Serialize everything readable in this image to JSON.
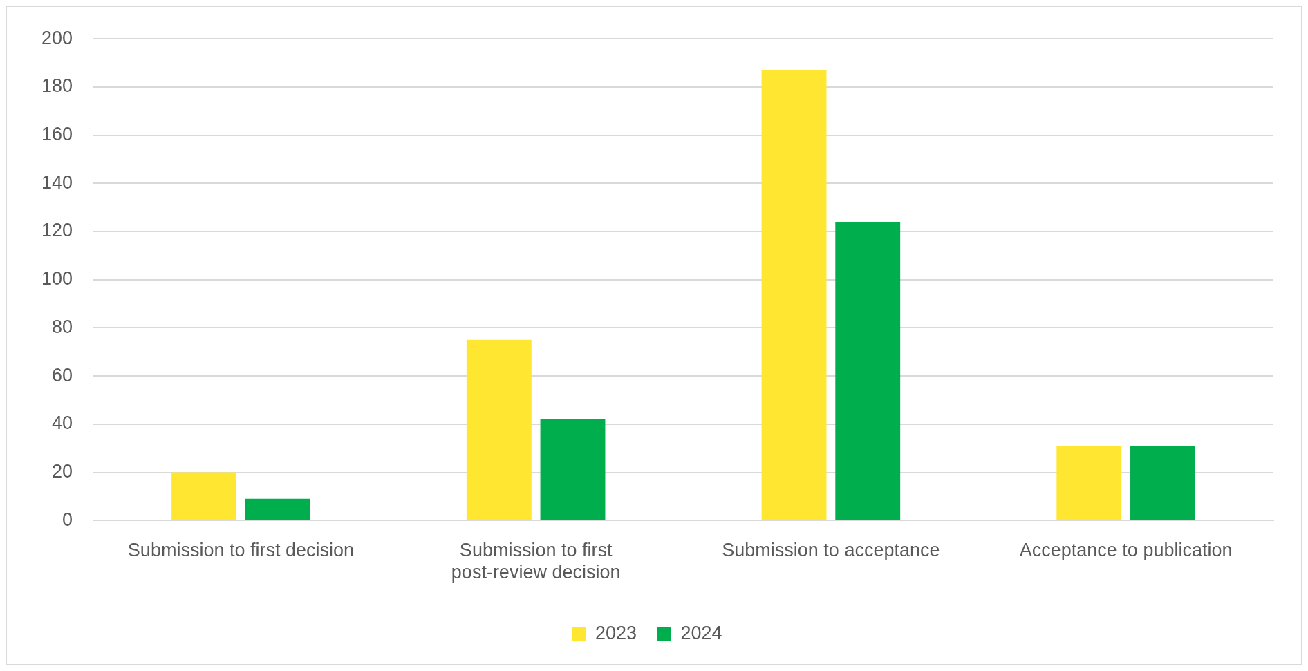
{
  "chart_data": {
    "type": "bar",
    "categories": [
      "Submission to first decision",
      "Submission to first post-review decision",
      "Submission to acceptance",
      "Acceptance to publication"
    ],
    "series": [
      {
        "name": "2023",
        "color": "#ffe631",
        "values": [
          20,
          75,
          187,
          31
        ]
      },
      {
        "name": "2024",
        "color": "#00ae4d",
        "values": [
          9,
          42,
          124,
          31
        ]
      }
    ],
    "ylim": [
      0,
      200
    ],
    "yticks": [
      0,
      20,
      40,
      60,
      80,
      100,
      120,
      140,
      160,
      180,
      200
    ],
    "grid": "y",
    "legend": "bottom"
  }
}
